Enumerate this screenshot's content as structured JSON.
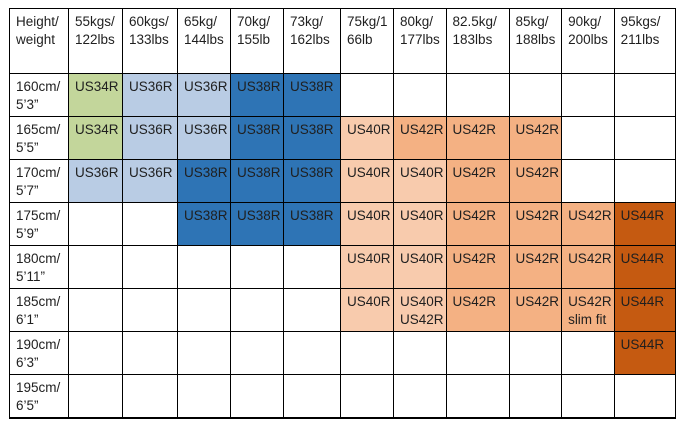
{
  "table": {
    "corner_label": "Height/\nweight",
    "weight_headers": [
      "55kgs/\n122lbs",
      "60kgs/\n133lbs",
      "65kg/\n144lbs",
      "70kg/\n155lb",
      "73kg/\n162lbs",
      "75kg/1\n66lb",
      "80kg/\n177lbs",
      "82.5kg/\n183lbs",
      "85kg/\n188lbs",
      "90kg/\n200lbs",
      "95kgs/\n211lbs"
    ],
    "rows": [
      {
        "label": "160cm/\n5’3”",
        "cells": [
          {
            "size": "US34R",
            "color": "green"
          },
          {
            "size": "US36R",
            "color": "lightblue"
          },
          {
            "size": "US36R",
            "color": "lightblue"
          },
          {
            "size": "US38R",
            "color": "darkblue"
          },
          {
            "size": "US38R",
            "color": "darkblue"
          },
          null,
          null,
          null,
          null,
          null,
          null
        ]
      },
      {
        "label": "165cm/\n5’5”",
        "cells": [
          {
            "size": "US34R",
            "color": "green"
          },
          {
            "size": "US36R",
            "color": "lightblue"
          },
          {
            "size": "US36R",
            "color": "lightblue"
          },
          {
            "size": "US38R",
            "color": "darkblue"
          },
          {
            "size": "US38R",
            "color": "darkblue"
          },
          {
            "size": "US40R",
            "color": "lightorange"
          },
          {
            "size": "US42R",
            "color": "orange"
          },
          {
            "size": "US42R",
            "color": "orange"
          },
          {
            "size": "US42R",
            "color": "orange"
          },
          null,
          null
        ]
      },
      {
        "label": "170cm/\n5’7”",
        "cells": [
          {
            "size": "US36R",
            "color": "lightblue"
          },
          {
            "size": "US36R",
            "color": "lightblue"
          },
          {
            "size": "US38R",
            "color": "darkblue"
          },
          {
            "size": "US38R",
            "color": "darkblue"
          },
          {
            "size": "US38R",
            "color": "darkblue"
          },
          {
            "size": "US40R",
            "color": "lightorange"
          },
          {
            "size": "US40R",
            "color": "lightorange"
          },
          {
            "size": "US42R",
            "color": "orange"
          },
          {
            "size": "US42R",
            "color": "orange"
          },
          null,
          null
        ]
      },
      {
        "label": "175cm/\n5’9”",
        "cells": [
          null,
          null,
          {
            "size": "US38R",
            "color": "darkblue"
          },
          {
            "size": "US38R",
            "color": "darkblue"
          },
          {
            "size": "US38R",
            "color": "darkblue"
          },
          {
            "size": "US40R",
            "color": "lightorange"
          },
          {
            "size": "US40R",
            "color": "lightorange"
          },
          {
            "size": "US42R",
            "color": "orange"
          },
          {
            "size": "US42R",
            "color": "orange"
          },
          {
            "size": "US42R",
            "color": "orange"
          },
          {
            "size": "US44R",
            "color": "darkorange"
          }
        ]
      },
      {
        "label": "180cm/\n5’11”",
        "cells": [
          null,
          null,
          null,
          null,
          null,
          {
            "size": "US40R",
            "color": "lightorange"
          },
          {
            "size": "US40R",
            "color": "lightorange"
          },
          {
            "size": "US42R",
            "color": "orange"
          },
          {
            "size": "US42R",
            "color": "orange"
          },
          {
            "size": "US42R",
            "color": "orange"
          },
          {
            "size": "US44R",
            "color": "darkorange"
          }
        ]
      },
      {
        "label": "185cm/\n6’1”",
        "cells": [
          null,
          null,
          null,
          null,
          null,
          {
            "size": "US40R",
            "color": "lightorange"
          },
          {
            "size": "US40R\nUS42R",
            "color": "lightorange"
          },
          {
            "size": "US42R",
            "color": "orange"
          },
          {
            "size": "US42R",
            "color": "orange"
          },
          {
            "size": "US42R\nslim fit",
            "color": "orange"
          },
          {
            "size": "US44R",
            "color": "darkorange"
          }
        ]
      },
      {
        "label": "190cm/\n6’3”",
        "cells": [
          null,
          null,
          null,
          null,
          null,
          null,
          null,
          null,
          null,
          null,
          {
            "size": "US44R",
            "color": "darkorange"
          }
        ]
      },
      {
        "label": "195cm/\n6’5”",
        "cells": [
          null,
          null,
          null,
          null,
          null,
          null,
          null,
          null,
          null,
          null,
          null
        ]
      }
    ]
  },
  "colors": {
    "green": "#c3d69b",
    "lightblue": "#b9cce4",
    "darkblue": "#2e74b5",
    "lightorange": "#f8cbad",
    "orange": "#f4b183",
    "darkorange": "#c55a11"
  }
}
